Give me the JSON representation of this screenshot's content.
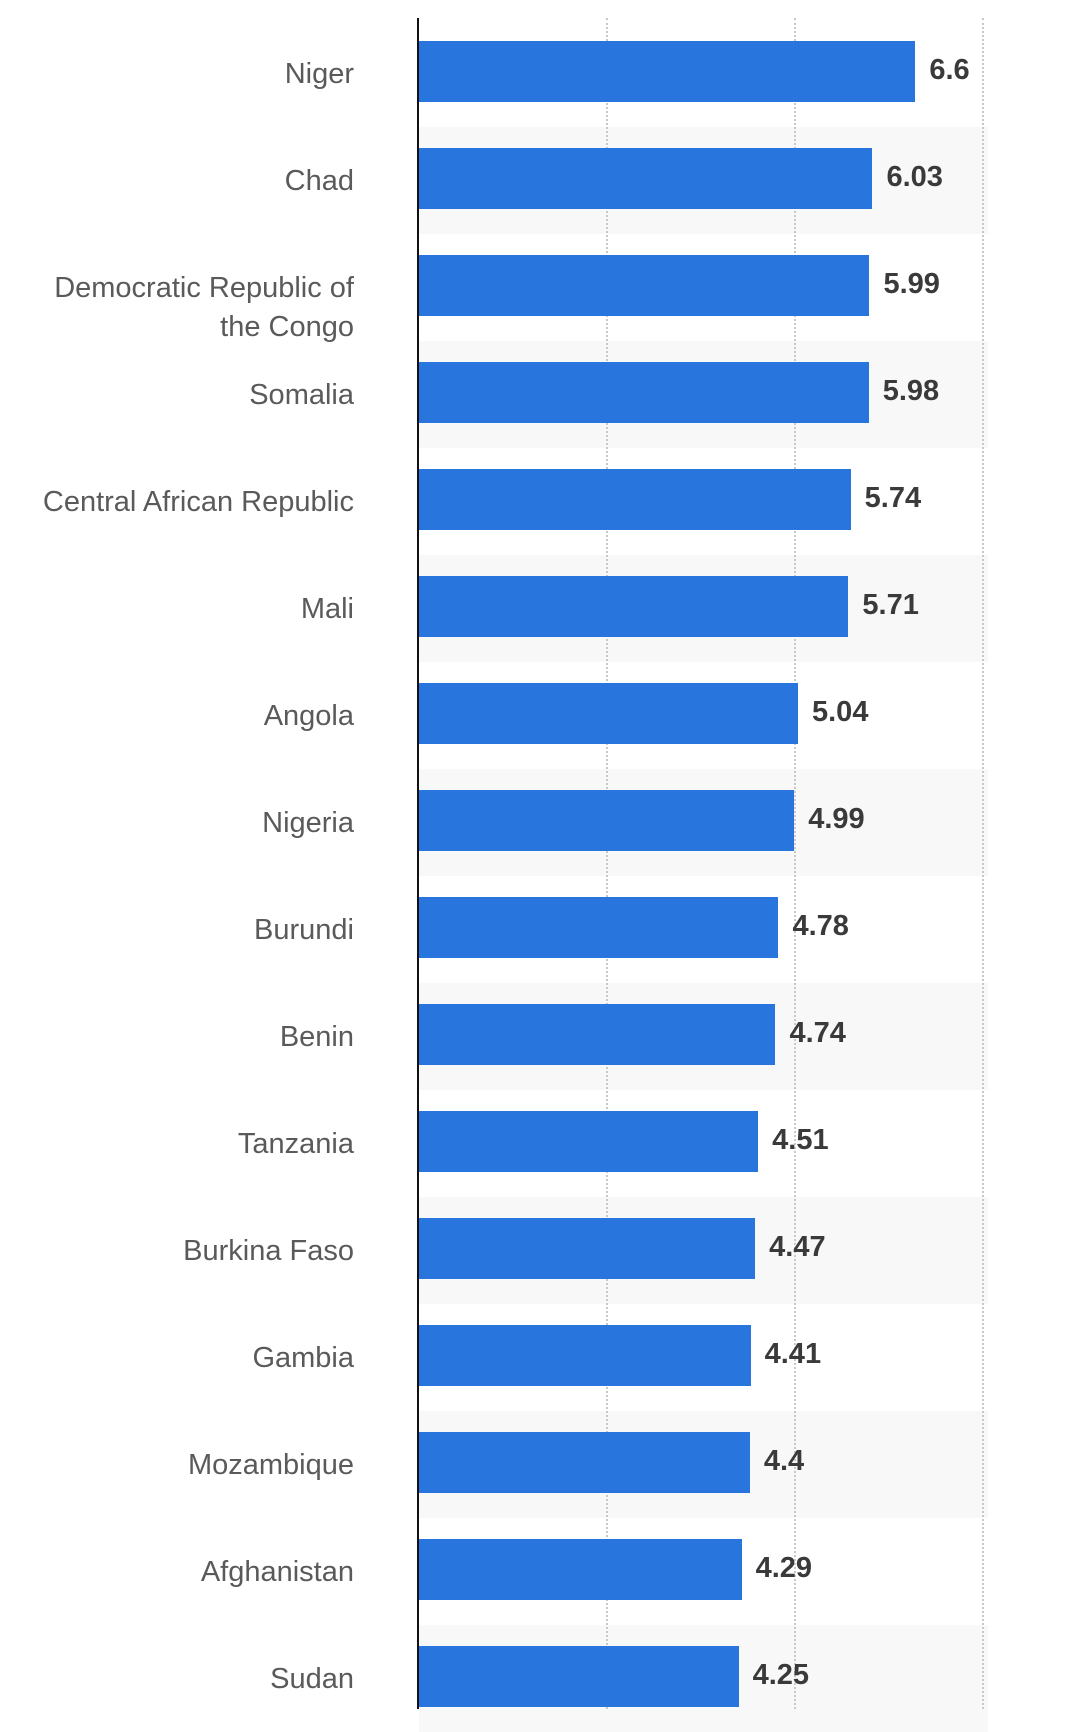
{
  "chart_data": {
    "type": "bar",
    "orientation": "horizontal",
    "title": "",
    "xlabel": "",
    "ylabel": "",
    "xlim": [
      0,
      7.5
    ],
    "gridlines": [
      2.5,
      5,
      7.5
    ],
    "bar_color": "#2876dd",
    "categories": [
      "Niger",
      "Chad",
      "Democratic Republic of the Congo",
      "Somalia",
      "Central African Republic",
      "Mali",
      "Angola",
      "Nigeria",
      "Burundi",
      "Benin",
      "Tanzania",
      "Burkina Faso",
      "Gambia",
      "Mozambique",
      "Afghanistan",
      "Sudan"
    ],
    "values": [
      6.6,
      6.03,
      5.99,
      5.98,
      5.74,
      5.71,
      5.04,
      4.99,
      4.78,
      4.74,
      4.51,
      4.47,
      4.41,
      4.4,
      4.29,
      4.25
    ],
    "value_labels": [
      "6.6",
      "6.03",
      "5.99",
      "5.98",
      "5.74",
      "5.71",
      "5.04",
      "4.99",
      "4.78",
      "4.74",
      "4.51",
      "4.47",
      "4.41",
      "4.4",
      "4.29",
      "4.25"
    ]
  }
}
